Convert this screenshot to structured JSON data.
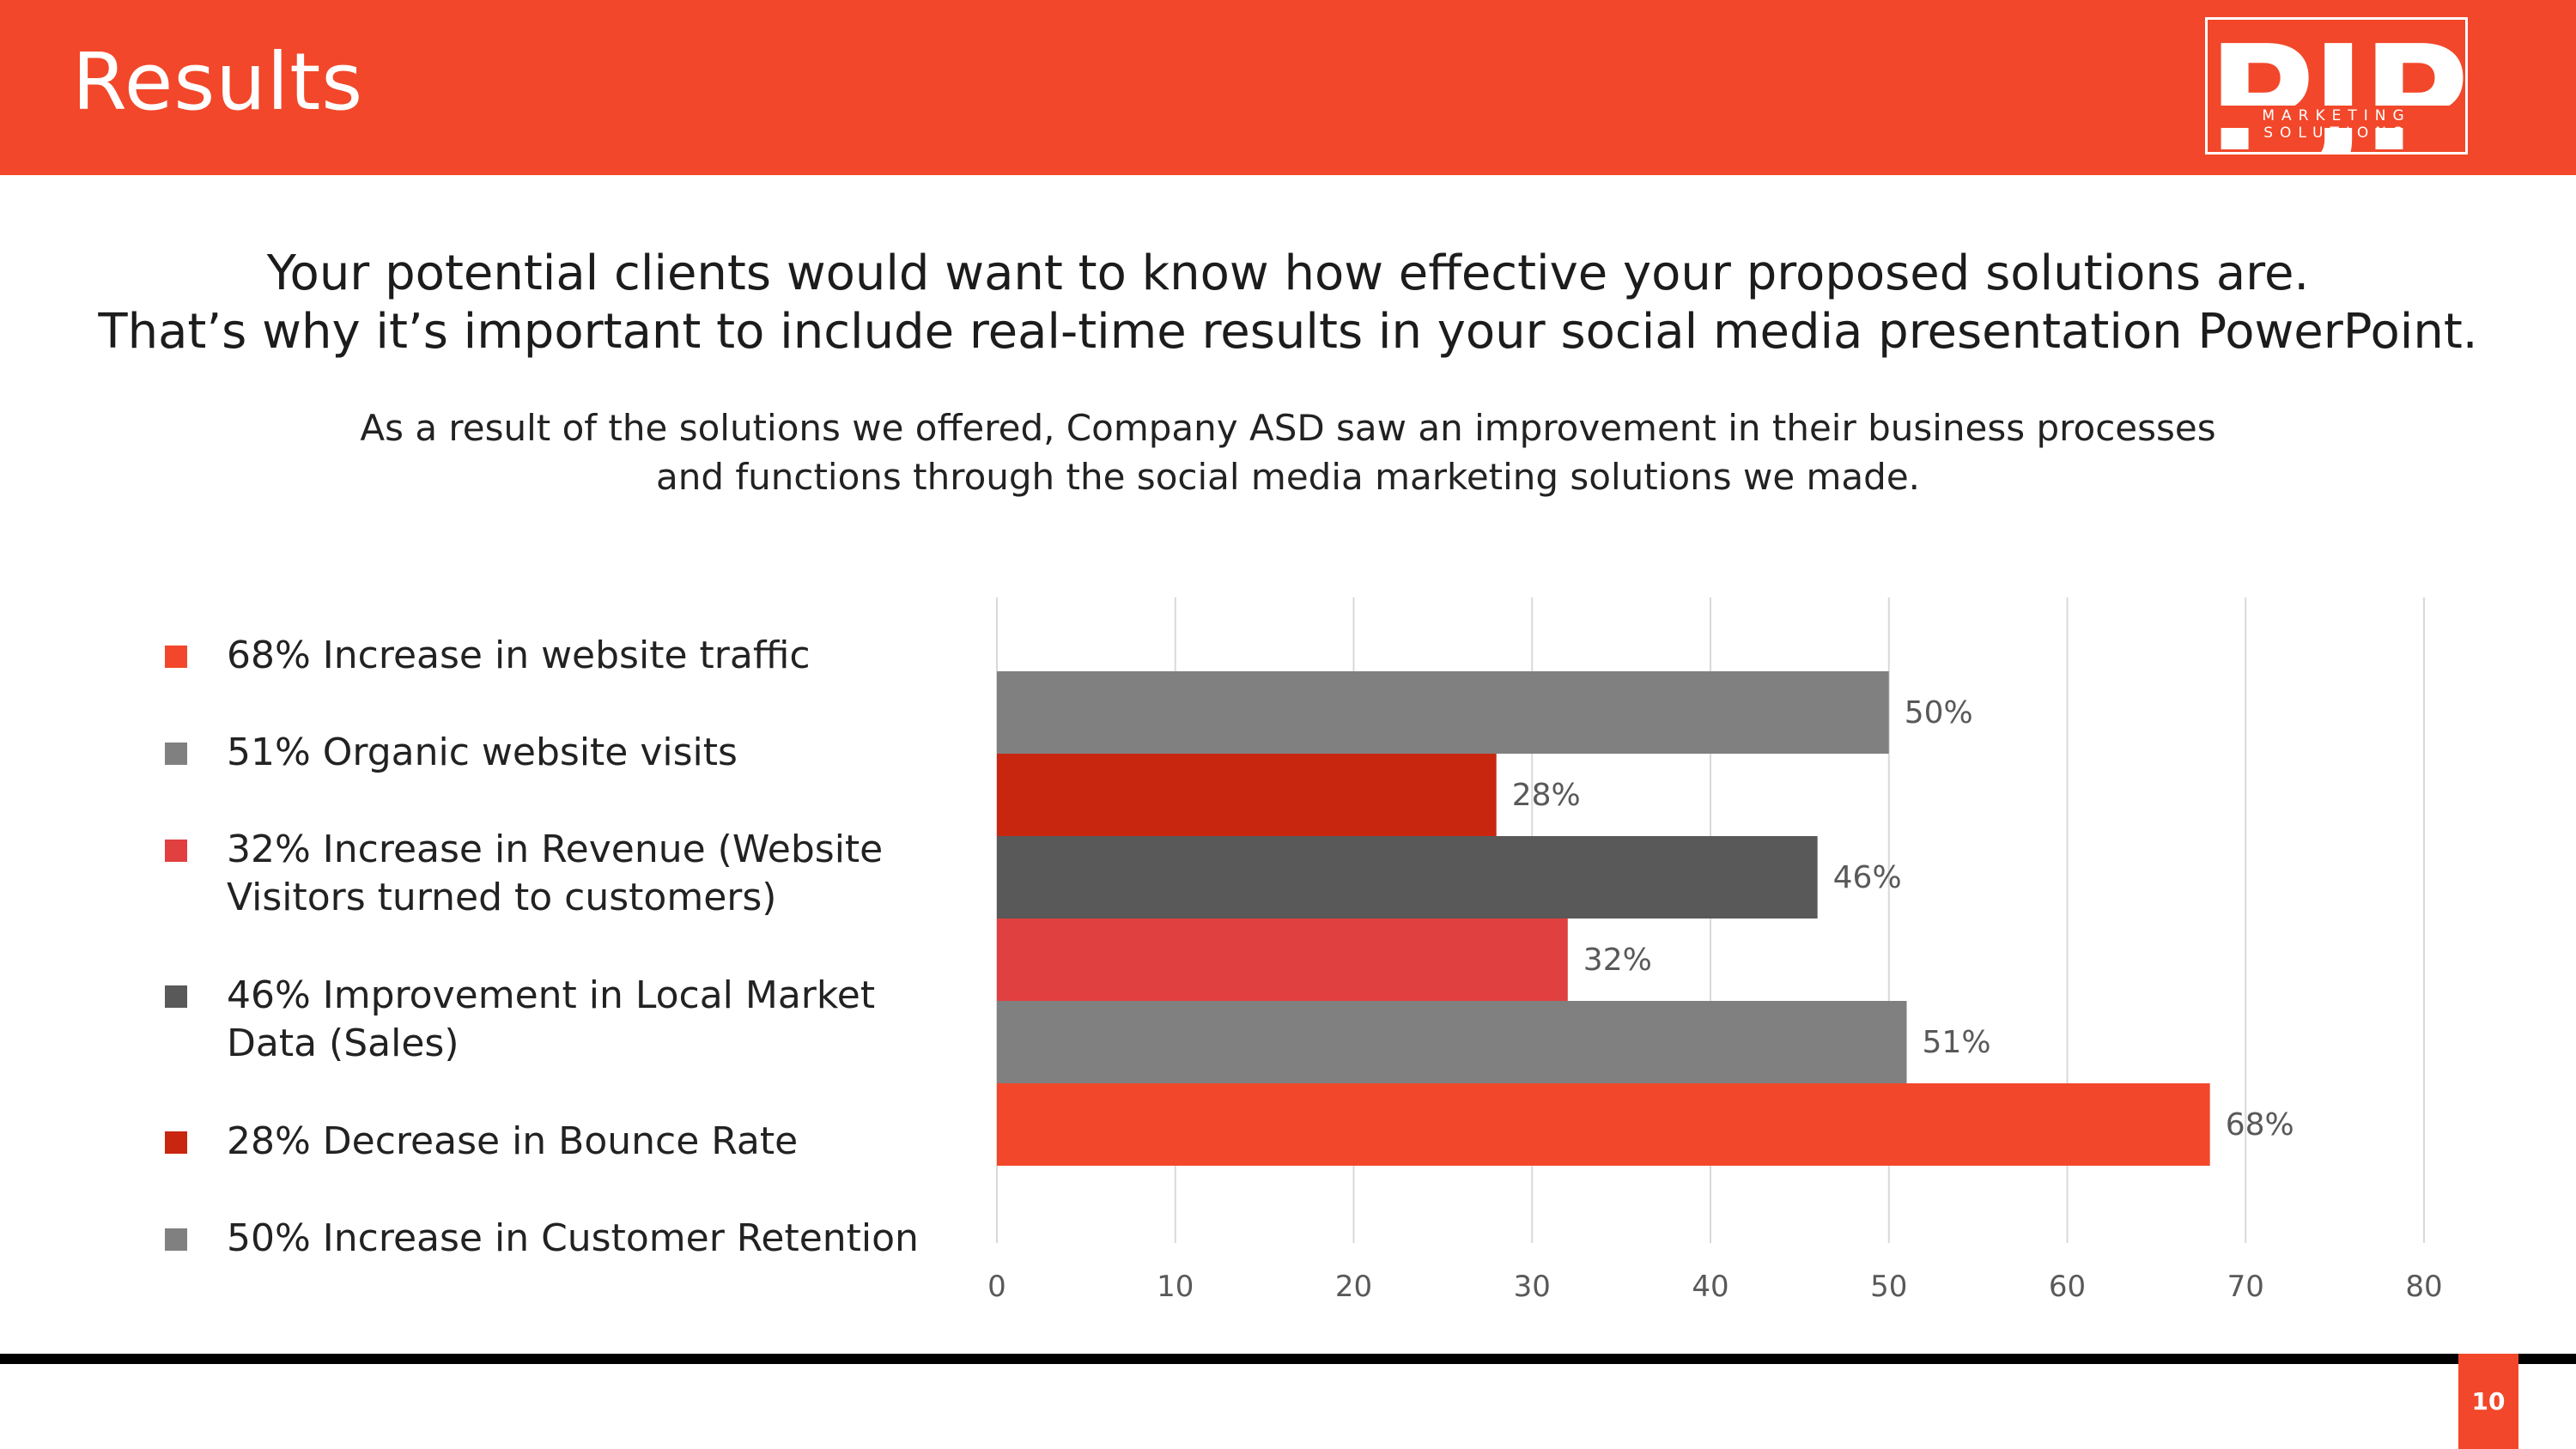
{
  "header": {
    "title": "Results",
    "logo_mark": "PJP",
    "logo_sub": "MARKETING SOLUTIONS"
  },
  "lead": [
    "Your potential clients would want to know how effective your proposed solutions are.",
    "That’s why it’s important to include real-time results in your social media presentation PowerPoint."
  ],
  "sub": [
    "As a result of the solutions we offered, Company ASD saw an improvement in their business processes",
    "and functions through the social media marketing solutions we made."
  ],
  "legend": [
    {
      "lines": [
        "68% Increase in website traffic"
      ],
      "color": "#f2472a"
    },
    {
      "lines": [
        "51% Organic website visits"
      ],
      "color": "#808080"
    },
    {
      "lines": [
        "32% Increase in Revenue (Website",
        "Visitors turned to customers)"
      ],
      "color": "#e04040"
    },
    {
      "lines": [
        "46% Improvement in Local Market",
        "Data (Sales)"
      ],
      "color": "#595959"
    },
    {
      "lines": [
        "28% Decrease in Bounce Rate"
      ],
      "color": "#c8260f"
    },
    {
      "lines": [
        "50% Increase in Customer Retention"
      ],
      "color": "#808080"
    }
  ],
  "chart_data": {
    "type": "bar",
    "orientation": "horizontal",
    "categories": [
      "50% Increase in Customer Retention",
      "28% Decrease in Bounce Rate",
      "46% Improvement in Local Market Data (Sales)",
      "32% Increase in Revenue (Website Visitors turned to customers)",
      "51% Organic website visits",
      "68% Increase in website traffic"
    ],
    "values": [
      50,
      28,
      46,
      32,
      51,
      68
    ],
    "data_labels": [
      "50%",
      "28%",
      "46%",
      "32%",
      "51%",
      "68%"
    ],
    "colors": [
      "#808080",
      "#c8260f",
      "#595959",
      "#e04040",
      "#808080",
      "#f2472a"
    ],
    "xlim": [
      0,
      80
    ],
    "xticks": [
      0,
      10,
      20,
      30,
      40,
      50,
      60,
      70,
      80
    ],
    "grid": true,
    "legend_position": "left"
  },
  "footer": {
    "page_number": "10"
  }
}
